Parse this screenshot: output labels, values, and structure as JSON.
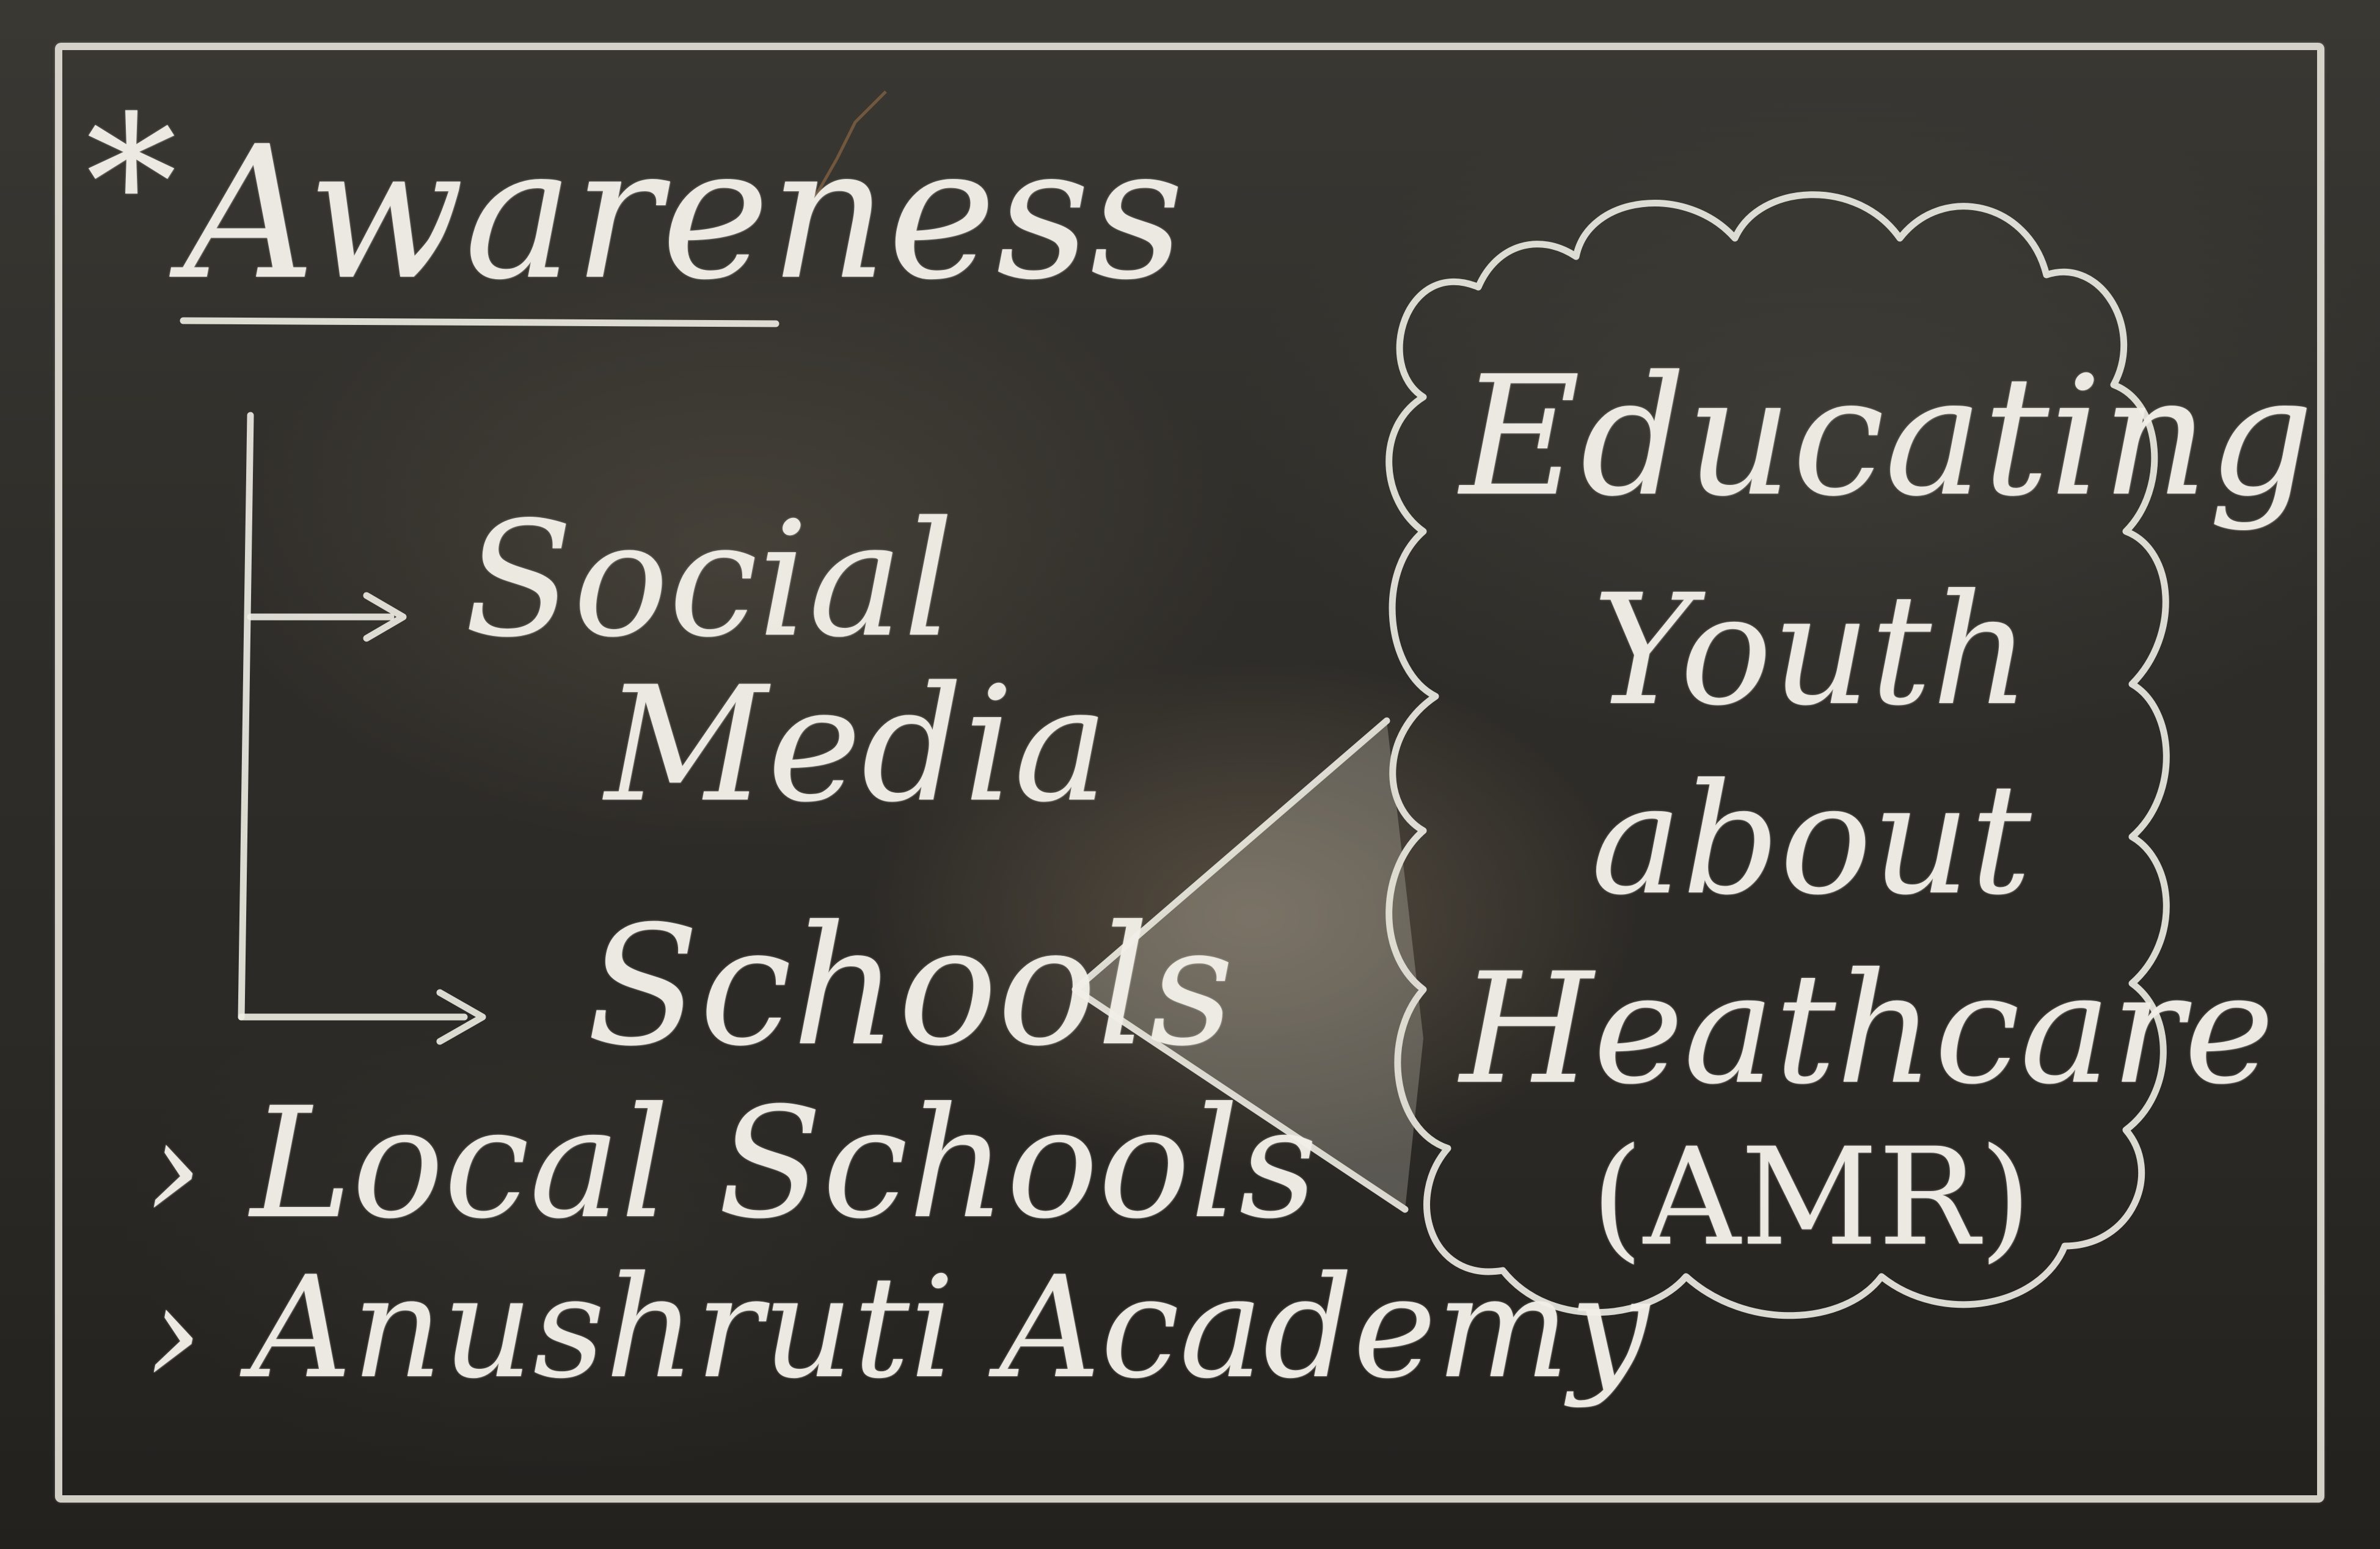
{
  "board": {
    "asterisk": "*",
    "title": "Awareness",
    "branches": [
      {
        "label_line1": "Social",
        "label_line2": "Media"
      },
      {
        "label": "Schools"
      }
    ],
    "bullets": [
      {
        "marker": "›",
        "text": "Local Schools"
      },
      {
        "marker": "›",
        "text": "Anushruti Academy"
      }
    ],
    "cloud": {
      "lines": [
        "Educating",
        "Youth",
        "about",
        "Heathcare",
        "(AMR)"
      ]
    }
  },
  "colors": {
    "chalk": "#f0eee6",
    "board": "#2f2d29"
  }
}
